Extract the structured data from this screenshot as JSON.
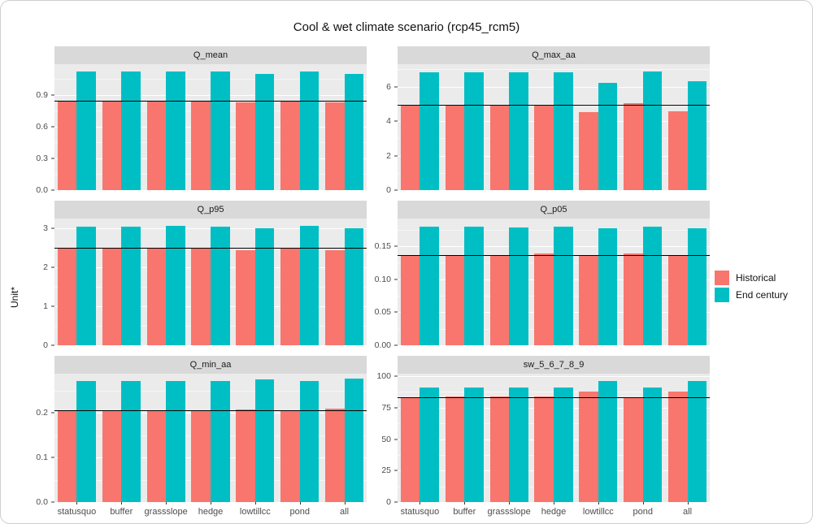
{
  "title": "Cool & wet climate scenario (rcp45_rcm5)",
  "y_axis_title": "Unit*",
  "legend": {
    "items": [
      {
        "label": "Historical",
        "color": "#F8766D"
      },
      {
        "label": "End century",
        "color": "#00BFC4"
      }
    ]
  },
  "colors": {
    "historical": "#F8766D",
    "end_century": "#00BFC4",
    "panel_bg": "#EBEBEB",
    "strip_bg": "#D9D9D9",
    "gridline": "#FFFFFF",
    "axis_text": "#4D4D4D",
    "ref_line": "#000000"
  },
  "chart_data": {
    "type": "bar",
    "layout_hint": "facet_wrap 2 columns x 3 rows, grouped dodged bars, free y scales, horizontal reference line per facet, legend right",
    "categories": [
      "statusquo",
      "buffer",
      "grassslope",
      "hedge",
      "lowtillcc",
      "pond",
      "all"
    ],
    "series_names": [
      "Historical",
      "End century"
    ],
    "facets": [
      {
        "title": "Q_mean",
        "ylim": [
          0,
          1.19
        ],
        "ytick_labels": [
          "0.0",
          "0.3",
          "0.6",
          "0.9"
        ],
        "ytick_values": [
          0,
          0.3,
          0.6,
          0.9
        ],
        "ref_line": 0.845,
        "historical": [
          0.84,
          0.84,
          0.84,
          0.84,
          0.83,
          0.84,
          0.83
        ],
        "end_century": [
          1.12,
          1.12,
          1.12,
          1.12,
          1.1,
          1.12,
          1.1
        ]
      },
      {
        "title": "Q_max_aa",
        "ylim": [
          0,
          7.3
        ],
        "ytick_labels": [
          "0",
          "2",
          "4",
          "6"
        ],
        "ytick_values": [
          0,
          2,
          4,
          6
        ],
        "ref_line": 4.95,
        "historical": [
          4.95,
          4.95,
          4.95,
          4.95,
          4.5,
          5.05,
          4.55
        ],
        "end_century": [
          6.85,
          6.85,
          6.85,
          6.85,
          6.2,
          6.9,
          6.3
        ]
      },
      {
        "title": "Q_p95",
        "ylim": [
          0,
          3.25
        ],
        "ytick_labels": [
          "0",
          "1",
          "2",
          "3"
        ],
        "ytick_values": [
          0,
          1,
          2,
          3
        ],
        "ref_line": 2.49,
        "historical": [
          2.49,
          2.49,
          2.49,
          2.49,
          2.43,
          2.47,
          2.43
        ],
        "end_century": [
          3.05,
          3.05,
          3.06,
          3.05,
          3.0,
          3.06,
          3.0
        ]
      },
      {
        "title": "Q_p05",
        "ylim": [
          0,
          0.192
        ],
        "ytick_labels": [
          "0.00",
          "0.05",
          "0.10",
          "0.15"
        ],
        "ytick_values": [
          0,
          0.05,
          0.1,
          0.15
        ],
        "ref_line": 0.137,
        "historical": [
          0.137,
          0.137,
          0.137,
          0.139,
          0.137,
          0.139,
          0.137
        ],
        "end_century": [
          0.18,
          0.18,
          0.179,
          0.18,
          0.177,
          0.18,
          0.177
        ]
      },
      {
        "title": "Q_min_aa",
        "ylim": [
          0,
          0.288
        ],
        "ytick_labels": [
          "0.0",
          "0.1",
          "0.2"
        ],
        "ytick_values": [
          0,
          0.1,
          0.2
        ],
        "ref_line": 0.206,
        "historical": [
          0.205,
          0.205,
          0.205,
          0.205,
          0.208,
          0.205,
          0.21
        ],
        "end_century": [
          0.271,
          0.271,
          0.271,
          0.271,
          0.275,
          0.271,
          0.277
        ]
      },
      {
        "title": "sw_5_6_7_8_9",
        "ylim": [
          0,
          102
        ],
        "ytick_labels": [
          "0",
          "25",
          "50",
          "75",
          "100"
        ],
        "ytick_values": [
          0,
          25,
          50,
          75,
          100
        ],
        "ref_line": 83,
        "historical": [
          83,
          84,
          84,
          84,
          88,
          83,
          88
        ],
        "end_century": [
          91,
          91,
          91,
          91,
          96,
          91,
          96
        ]
      }
    ]
  }
}
